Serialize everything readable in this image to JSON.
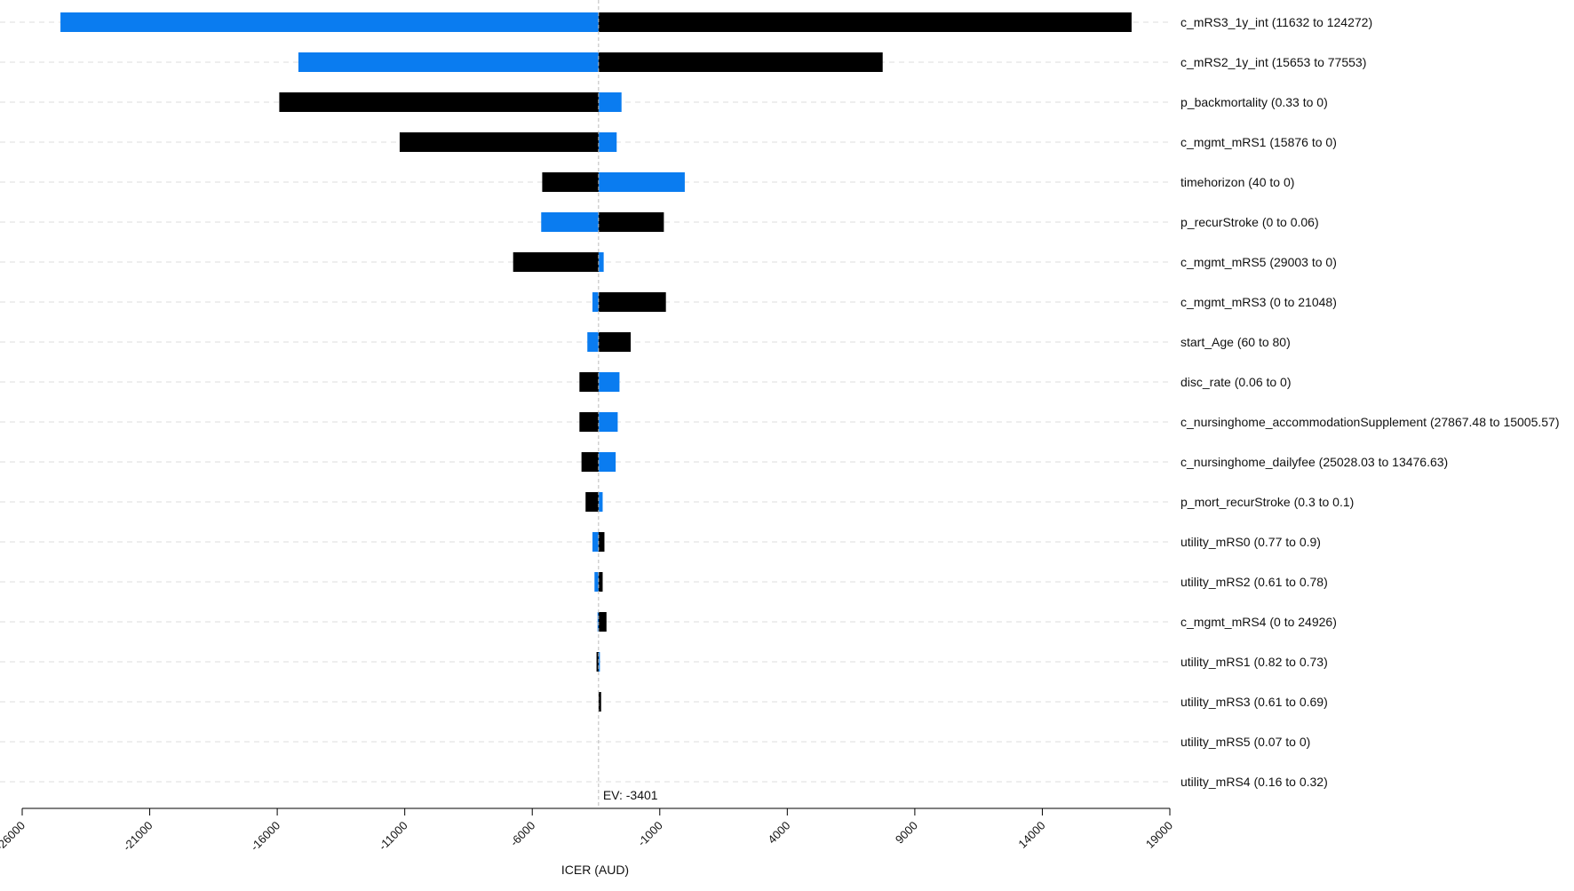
{
  "chart_data": {
    "type": "bar",
    "subtype": "tornado",
    "xlabel": "ICER (AUD)",
    "xlim": [
      -26000,
      19000
    ],
    "xticks": [
      -26000,
      -21000,
      -16000,
      -11000,
      -6000,
      -1000,
      4000,
      9000,
      14000,
      19000
    ],
    "xtick_labels": [
      "-26000",
      "-21000",
      "-16000",
      "-11000",
      "-6000",
      "-1000",
      "4000",
      "9000",
      "14000",
      "19000"
    ],
    "ev": -3401,
    "ev_label": "EV: -3401",
    "colors": {
      "blue": "#0a7cf0",
      "black": "#000000"
    },
    "categories": [
      "c_mRS3_1y_int (11632 to 124272)",
      "c_mRS2_1y_int (15653 to 77553)",
      "p_backmortality (0.33 to 0)",
      "c_mgmt_mRS1 (15876 to 0)",
      "timehorizon (40 to 0)",
      "p_recurStroke (0 to 0.06)",
      "c_mgmt_mRS5 (29003 to 0)",
      "c_mgmt_mRS3 (0 to 21048)",
      "start_Age (60 to 80)",
      "disc_rate (0.06 to 0)",
      "c_nursinghome_accommodationSupplement (27867.48 to 15005.57)",
      "c_nursinghome_dailyfee (25028.03 to 13476.63)",
      "p_mort_recurStroke (0.3 to 0.1)",
      "utility_mRS0 (0.77 to 0.9)",
      "utility_mRS2 (0.61 to 0.78)",
      "c_mgmt_mRS4 (0 to 24926)",
      "utility_mRS1 (0.82 to 0.73)",
      "utility_mRS3 (0.61 to 0.69)",
      "utility_mRS5 (0.07 to 0)",
      "utility_mRS4 (0.16 to 0.32)"
    ],
    "series": [
      {
        "name": "blue",
        "values": [
          -24500,
          -15170,
          -2500,
          -2690,
          -20,
          -5650,
          -3200,
          -3640,
          -3840,
          -2580,
          -2650,
          -2730,
          -3240,
          -3640,
          -3560,
          -3440,
          -3360,
          -3401,
          -3401,
          -3401
        ]
      },
      {
        "name": "black",
        "values": [
          17500,
          7740,
          -15920,
          -11200,
          -5610,
          -840,
          -6750,
          -760,
          -2140,
          -4150,
          -4150,
          -4070,
          -3910,
          -3170,
          -3240,
          -3090,
          -3480,
          -3300,
          -3401,
          -3401
        ]
      }
    ]
  }
}
